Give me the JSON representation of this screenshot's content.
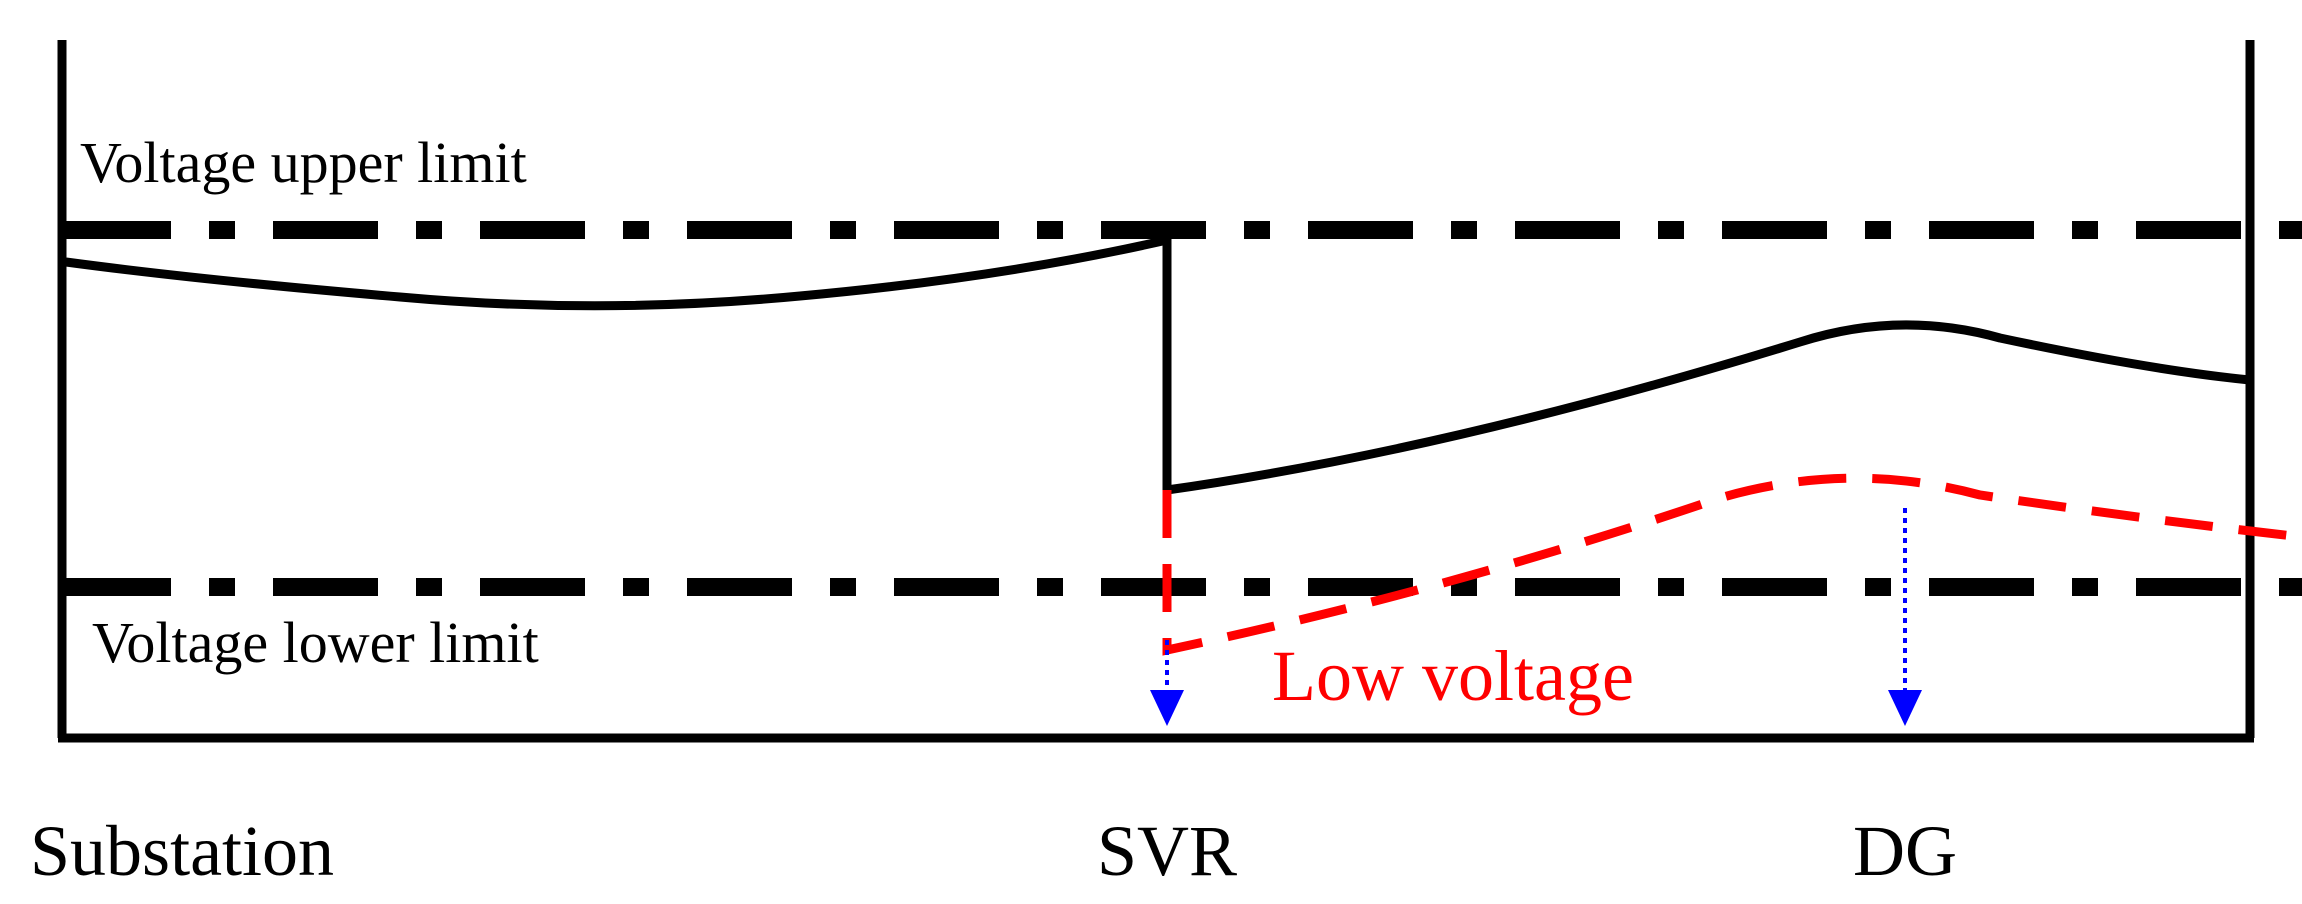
{
  "labels": {
    "upper_limit": "Voltage upper limit",
    "lower_limit": "Voltage lower limit",
    "low_voltage": "Low voltage",
    "substation": "Substation",
    "svr": "SVR",
    "dg": "DG"
  },
  "colors": {
    "line": "#000000",
    "low_voltage": "#ff0000",
    "arrow": "#0000ff",
    "background": "#ffffff"
  }
}
